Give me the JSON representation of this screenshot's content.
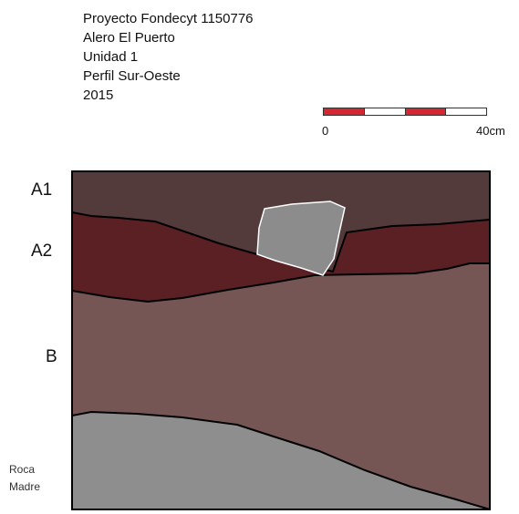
{
  "header": {
    "lines": [
      "Proyecto Fondecyt 1150776",
      "Alero El Puerto",
      "Unidad 1",
      "Perfil Sur-Oeste",
      "2015"
    ]
  },
  "scale": {
    "min_label": "0",
    "max_label": "40cm",
    "segment_colors": [
      "#d42731",
      "#ffffff",
      "#d42731",
      "#ffffff"
    ]
  },
  "layers": [
    {
      "id": "A1",
      "label": "A1",
      "color": "#543b3b"
    },
    {
      "id": "A2",
      "label": "A2",
      "color": "#5a2024"
    },
    {
      "id": "B",
      "label": "B",
      "color": "#755655"
    },
    {
      "id": "roca-madre",
      "label_lines": [
        "Roca",
        "Madre"
      ],
      "color": "#8e8e8e"
    }
  ],
  "features": {
    "rock_color": "#8c8c8c"
  }
}
